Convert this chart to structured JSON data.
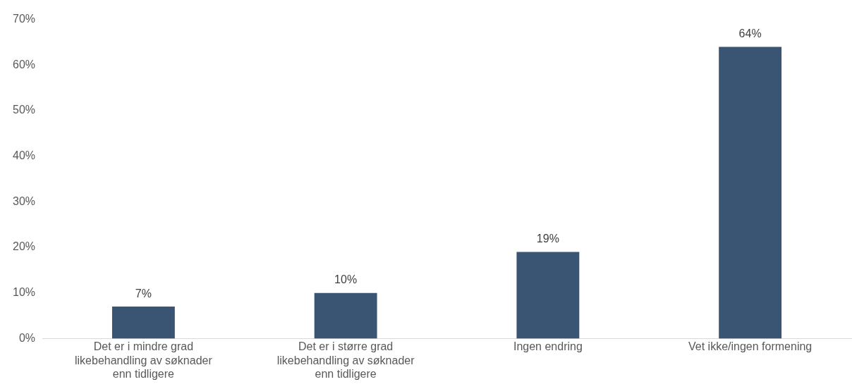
{
  "chart_data": {
    "type": "bar",
    "categories": [
      "Det er i mindre grad likebehandling av søknader enn tidligere",
      "Det er i større grad likebehandling av søknader enn tidligere",
      "Ingen endring",
      "Vet ikke/ingen formening"
    ],
    "values": [
      7,
      10,
      19,
      64
    ],
    "color": "#3a5573",
    "value_labels": [
      "7%",
      "10%",
      "19%",
      "64%"
    ],
    "ylim": [
      0,
      70
    ],
    "yticks": [
      {
        "value": 0,
        "label": "0%"
      },
      {
        "value": 10,
        "label": "10%"
      },
      {
        "value": 20,
        "label": "20%"
      },
      {
        "value": 30,
        "label": "30%"
      },
      {
        "value": 40,
        "label": "40%"
      },
      {
        "value": 50,
        "label": "50%"
      },
      {
        "value": 60,
        "label": "60%"
      },
      {
        "value": 70,
        "label": "70%"
      }
    ],
    "grid": false,
    "legend": false
  }
}
